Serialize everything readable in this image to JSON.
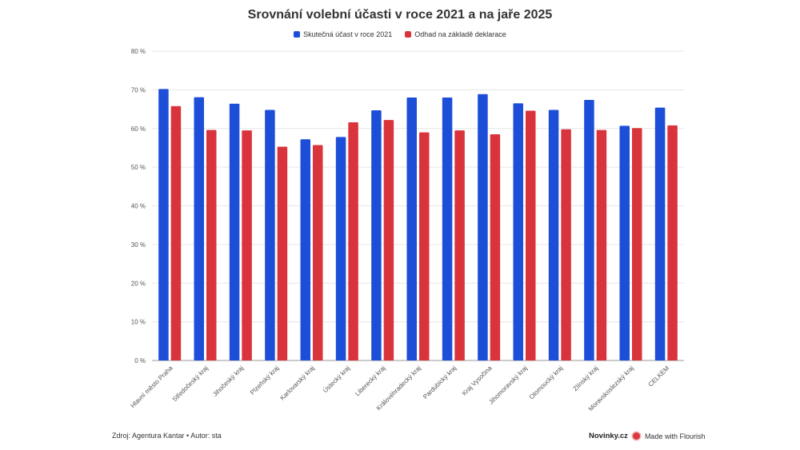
{
  "chart_data": {
    "type": "bar",
    "title": "Srovnání volební účasti v roce 2021 a na jaře 2025",
    "xlabel": "",
    "ylabel": "",
    "ylim": [
      0,
      80
    ],
    "yticks": [
      0,
      10,
      20,
      30,
      40,
      50,
      60,
      70,
      80
    ],
    "ytick_labels": [
      "0 %",
      "10 %",
      "20 %",
      "30 %",
      "40 %",
      "50 %",
      "60 %",
      "70 %",
      "80 %"
    ],
    "grid": true,
    "legend_position": "top-center",
    "categories": [
      "Hlavní město Praha",
      "Středočeský kraj",
      "Jihočeský kraj",
      "Plzeňský kraj",
      "Karlovarský kraj",
      "Ústecký kraj",
      "Liberecký kraj",
      "Královéhradecký kraj",
      "Pardubický kraj",
      "Kraj Vysočina",
      "Jihomoravský kraj",
      "Olomoucký kraj",
      "Zlínský kraj",
      "Moravskoslezský kraj",
      "CELKEM"
    ],
    "series": [
      {
        "name": "Skutečná účast v roce 2021",
        "color": "#1d4ed8",
        "values": [
          70.2,
          68.1,
          66.4,
          64.8,
          57.2,
          57.8,
          64.7,
          68.0,
          68.0,
          68.9,
          66.5,
          64.8,
          67.4,
          60.7,
          65.4
        ]
      },
      {
        "name": "Odhad na základě deklarace",
        "color": "#d9343c",
        "values": [
          65.8,
          59.6,
          59.5,
          55.3,
          55.7,
          61.6,
          62.2,
          59.0,
          59.5,
          58.5,
          64.6,
          59.8,
          59.6,
          60.1,
          60.8
        ]
      }
    ]
  },
  "footer": {
    "source": "Zdroj: Agentura Kantar • Autor: sta",
    "brand": "Novinky.cz",
    "made_with": "Made with Flourish"
  },
  "colors": {
    "series1": "#1d4ed8",
    "series2": "#d9343c",
    "grid": "#e6e6e6"
  }
}
